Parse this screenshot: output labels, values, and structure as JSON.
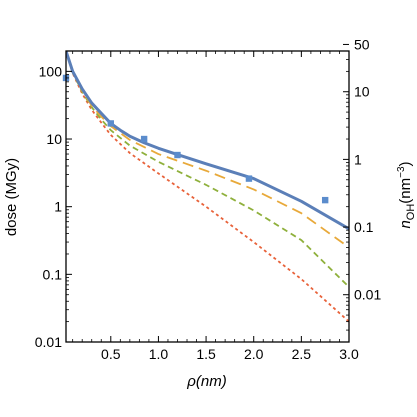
{
  "chart_data": {
    "type": "line",
    "title": "",
    "xlabel": "ρ(nm)",
    "ylabel": "dose (MGy)",
    "y2label_base": "n",
    "y2label_sub": "OH",
    "y2label_unit": "(nm",
    "y2label_exp": "−3",
    "y2label_close": ")",
    "xlim": [
      0.03,
      3.0
    ],
    "ylim": [
      0.01,
      200
    ],
    "yscale": "log",
    "y2_scale_factor_to_left": 0.2,
    "grid": false,
    "legend": "none",
    "x_ticks": [
      {
        "value": 0.5,
        "label": "0.5"
      },
      {
        "value": 1.0,
        "label": "1.0"
      },
      {
        "value": 1.5,
        "label": "1.5"
      },
      {
        "value": 2.0,
        "label": "2.0"
      },
      {
        "value": 2.5,
        "label": "2.5"
      },
      {
        "value": 3.0,
        "label": "3.0"
      }
    ],
    "y_ticks": [
      {
        "value": 0.01,
        "label": "0.01"
      },
      {
        "value": 0.1,
        "label": "0.1"
      },
      {
        "value": 1,
        "label": "1"
      },
      {
        "value": 10,
        "label": "10"
      },
      {
        "value": 100,
        "label": "100"
      }
    ],
    "y2_ticks": [
      {
        "value": 0.01,
        "label": "0.01"
      },
      {
        "value": 0.1,
        "label": "0.1"
      },
      {
        "value": 1,
        "label": "1"
      },
      {
        "value": 10,
        "label": "10"
      },
      {
        "value": 50,
        "label": "50"
      }
    ],
    "series": [
      {
        "style": "solid",
        "color": "#5b7fb8",
        "width": 3,
        "x": [
          0.03,
          0.1,
          0.2,
          0.3,
          0.4,
          0.5,
          0.6,
          0.7,
          0.85,
          1.0,
          1.2,
          1.5,
          2.0,
          2.5,
          3.0
        ],
        "y": [
          200,
          100,
          55,
          34,
          24,
          17,
          13.5,
          11,
          8.8,
          7.3,
          5.9,
          4.3,
          2.6,
          1.2,
          0.47
        ]
      },
      {
        "style": "dash-long",
        "color": "#e8a93a",
        "width": 1.8,
        "x": [
          0.03,
          0.1,
          0.2,
          0.3,
          0.4,
          0.5,
          0.7,
          1.0,
          1.5,
          2.0,
          2.5,
          3.0
        ],
        "y": [
          200,
          98,
          52,
          31,
          21.5,
          15.5,
          9.7,
          6.0,
          3.4,
          1.8,
          0.8,
          0.25
        ]
      },
      {
        "style": "dash",
        "color": "#8fb03c",
        "width": 1.8,
        "x": [
          0.03,
          0.1,
          0.2,
          0.3,
          0.4,
          0.5,
          0.7,
          1.0,
          1.5,
          2.0,
          2.5,
          3.0
        ],
        "y": [
          200,
          96,
          50,
          29.5,
          19.5,
          13.5,
          8.0,
          4.6,
          2.1,
          0.88,
          0.32,
          0.065
        ]
      },
      {
        "style": "dot",
        "color": "#e8623a",
        "width": 1.8,
        "x": [
          0.03,
          0.1,
          0.2,
          0.3,
          0.4,
          0.5,
          0.7,
          1.0,
          1.5,
          2.0,
          2.5,
          3.0
        ],
        "y": [
          200,
          94,
          47,
          27,
          17.5,
          11.5,
          6.2,
          3.1,
          1.0,
          0.3,
          0.085,
          0.02
        ]
      }
    ],
    "points": {
      "color": "#5b8ccc",
      "x": [
        0.03,
        0.5,
        0.85,
        1.2,
        1.95,
        2.75
      ],
      "y": [
        80,
        17,
        10,
        5.8,
        2.6,
        1.25
      ]
    }
  }
}
